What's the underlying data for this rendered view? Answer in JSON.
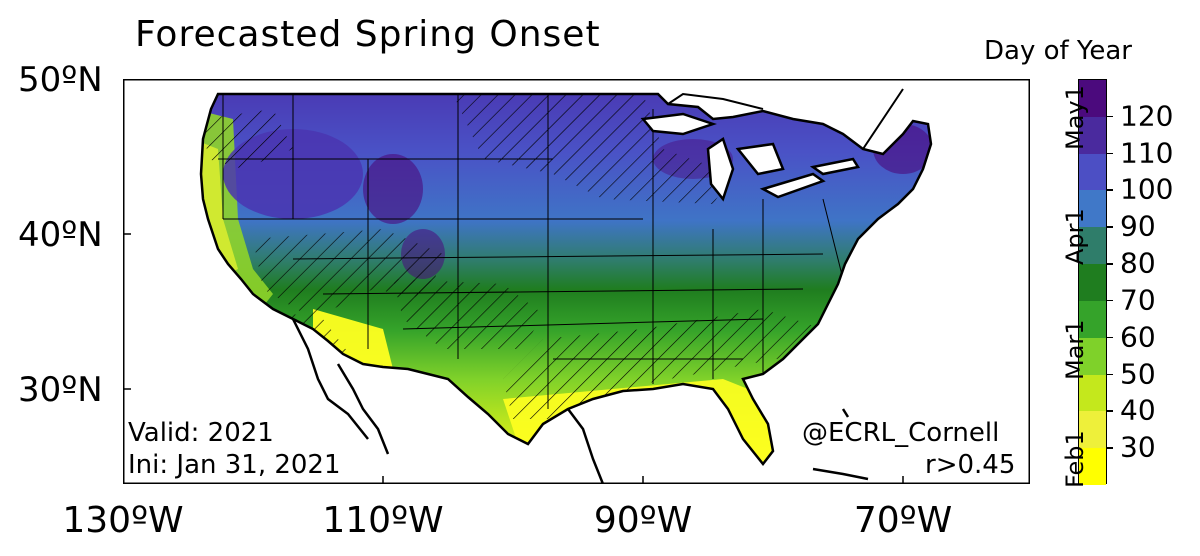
{
  "title": "Forecasted Spring Onset",
  "colorbar": {
    "title": "Day of Year",
    "labels": [
      "120",
      "110",
      "100",
      "90",
      "80",
      "70",
      "60",
      "50",
      "40",
      "30"
    ],
    "colors": [
      "#4b0a7d",
      "#4a2a9e",
      "#4c4fc4",
      "#4078c8",
      "#2f7d6a",
      "#1f7d1f",
      "#35a32a",
      "#7fd12a",
      "#c4e81c",
      "#eef03a",
      "#ffff00"
    ],
    "months": [
      "May1",
      "Apr1",
      "Mar1",
      "Feb1"
    ]
  },
  "axes": {
    "lat_labels": [
      "50ºN",
      "40ºN",
      "30ºN"
    ],
    "lon_labels": [
      "130ºW",
      "110ºW",
      "90ºW",
      "70ºW"
    ]
  },
  "annotations": {
    "valid": "Valid: 2021",
    "ini": "Ini: Jan 31, 2021",
    "credit": "@ECRL_Cornell",
    "corr": "r>0.45"
  }
}
